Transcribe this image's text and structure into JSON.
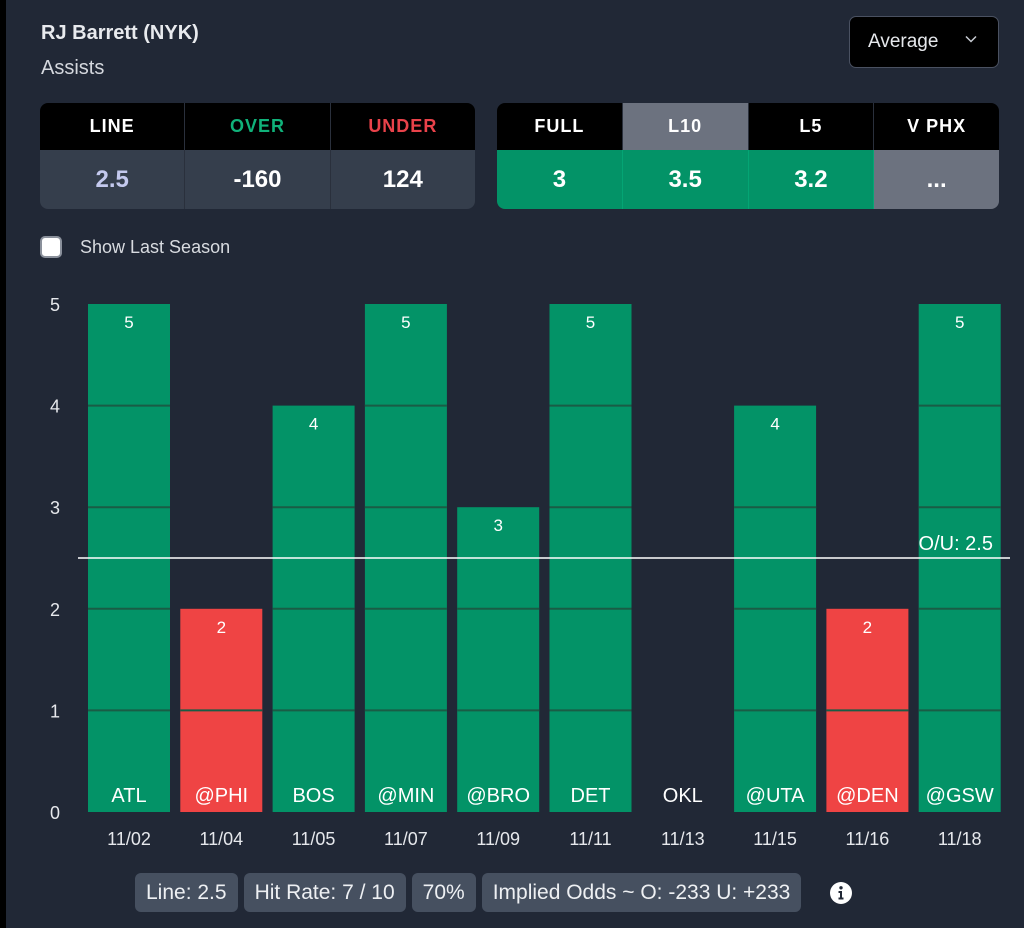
{
  "header": {
    "player": "RJ Barrett (NYK)",
    "stat": "Assists"
  },
  "dropdown": {
    "selected": "Average",
    "icon": "chevron-down-icon"
  },
  "odds_table": {
    "headers": [
      "LINE",
      "OVER",
      "UNDER"
    ],
    "values": [
      "2.5",
      "-160",
      "124"
    ]
  },
  "average_table": {
    "headers": [
      "FULL",
      "L10",
      "L5",
      "V PHX"
    ],
    "active_tab": "L10",
    "values": [
      "3",
      "3.5",
      "3.2",
      "..."
    ]
  },
  "checkbox": {
    "label": "Show Last Season",
    "checked": false
  },
  "colors": {
    "over": "#039367",
    "under": "#ef4444",
    "background": "#212836",
    "grey": "#6c727f"
  },
  "chart_data": {
    "type": "bar",
    "title": "RJ Barrett (NYK) Assists",
    "xlabel": "",
    "ylabel": "",
    "ylim": [
      0,
      5
    ],
    "yticks": [
      0,
      1,
      2,
      3,
      4,
      5
    ],
    "grid": true,
    "categories": [
      "ATL",
      "@PHI",
      "BOS",
      "@MIN",
      "@BRO",
      "DET",
      "OKL",
      "@UTA",
      "@DEN",
      "@GSW"
    ],
    "dates": [
      "11/02",
      "11/04",
      "11/05",
      "11/07",
      "11/09",
      "11/11",
      "11/13",
      "11/15",
      "11/16",
      "11/18"
    ],
    "values": [
      5,
      2,
      4,
      5,
      3,
      5,
      0,
      4,
      2,
      5
    ],
    "value_labels": [
      "5",
      "2",
      "4",
      "5",
      "3",
      "5",
      "",
      "4",
      "2",
      "5"
    ],
    "reference_line": {
      "value": 2.5,
      "label": "O/U: 2.5"
    },
    "over_color": "#039367",
    "under_color": "#ef4444"
  },
  "summary": {
    "line": "Line: 2.5",
    "hit_rate": "Hit Rate: 7 / 10",
    "percent": "70%",
    "implied_odds": "Implied Odds ~ O: -233 U: +233",
    "info_icon": "info-icon"
  }
}
